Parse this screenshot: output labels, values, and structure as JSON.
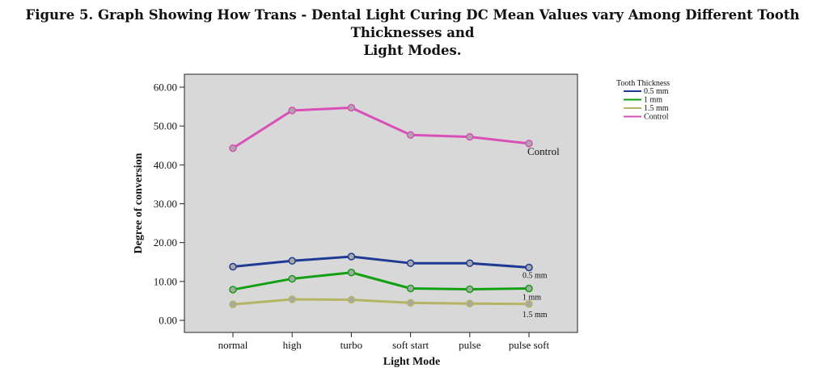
{
  "figure": {
    "title_line1": "Figure 5. Graph Showing How Trans - Dental Light Curing DC Mean Values vary Among Different Tooth Thicknesses and",
    "title_line2": "Light Modes."
  },
  "colors": {
    "plot_background": "#d8d8d8",
    "marker_fill": "#a8a8a8"
  },
  "chart_data": {
    "type": "line",
    "xlabel": "Light Mode",
    "ylabel": "Degree of conversion",
    "categories": [
      "normal",
      "high",
      "turbo",
      "soft start",
      "pulse",
      "pulse soft"
    ],
    "ylim": [
      0,
      60
    ],
    "yticks": [
      "0.00",
      "10.00",
      "20.00",
      "30.00",
      "40.00",
      "50.00",
      "60.00"
    ],
    "grid": false,
    "legend": {
      "title": "Tooth Thickness",
      "position": "top-right"
    },
    "series": [
      {
        "name": "0.5 mm",
        "color": "#1f3a93",
        "label": "0.5 mm",
        "values": [
          13.8,
          15.3,
          16.4,
          14.7,
          14.7,
          13.6
        ]
      },
      {
        "name": "1 mm",
        "color": "#12a012",
        "label": "1 mm",
        "values": [
          7.9,
          10.7,
          12.3,
          8.2,
          8.0,
          8.2
        ]
      },
      {
        "name": "1.5 mm",
        "color": "#b4b464",
        "label": "1.5 mm",
        "values": [
          4.1,
          5.4,
          5.3,
          4.5,
          4.3,
          4.2
        ]
      },
      {
        "name": "Control",
        "color": "#d94fb8",
        "label": "Control",
        "values": [
          44.3,
          54.0,
          54.7,
          47.7,
          47.2,
          45.5
        ]
      }
    ]
  }
}
